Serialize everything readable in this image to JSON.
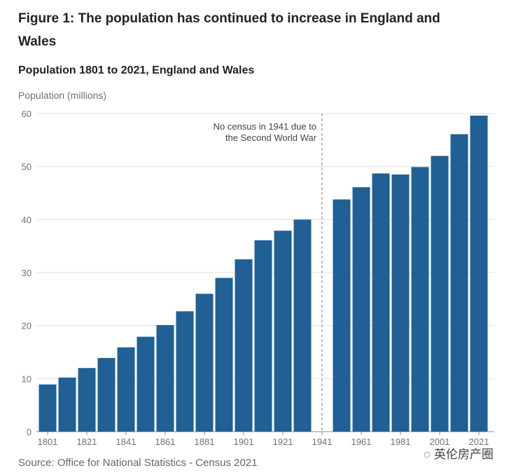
{
  "title": "Figure 1: The population has continued to increase in England and Wales",
  "watermark": "英伦房产圈",
  "chart_data": {
    "type": "bar",
    "title": "Population 1801 to 2021, England and Wales",
    "ylabel": "Population (millions)",
    "xlabel": "",
    "ylim": [
      0,
      60
    ],
    "yticks": [
      0,
      10,
      20,
      30,
      40,
      50,
      60
    ],
    "grid": true,
    "bar_color": "#206095",
    "categories": [
      "1801",
      "1811",
      "1821",
      "1831",
      "1841",
      "1851",
      "1861",
      "1871",
      "1881",
      "1891",
      "1901",
      "1911",
      "1921",
      "1931",
      "1941",
      "1951",
      "1961",
      "1971",
      "1981",
      "1991",
      "2001",
      "2011",
      "2021"
    ],
    "xtick_labels": [
      "1801",
      "1821",
      "1841",
      "1861",
      "1881",
      "1901",
      "1921",
      "1941",
      "1961",
      "1981",
      "2001",
      "2021"
    ],
    "values": [
      8.9,
      10.2,
      12.0,
      13.9,
      15.9,
      17.9,
      20.1,
      22.7,
      26.0,
      29.0,
      32.5,
      36.1,
      37.9,
      40.0,
      null,
      43.8,
      46.1,
      48.7,
      48.5,
      49.9,
      52.0,
      56.1,
      59.6
    ],
    "annotation": {
      "category": "1941",
      "lines": [
        "No census in 1941 due to",
        "the Second World War"
      ]
    },
    "source": "Source: Office for National Statistics - Census 2021"
  }
}
